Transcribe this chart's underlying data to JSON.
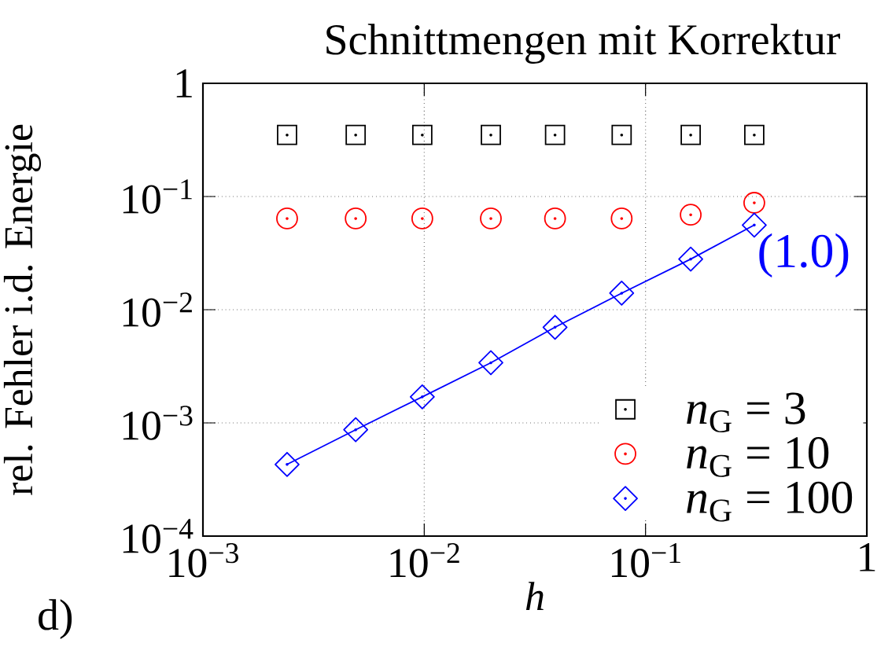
{
  "chart_data": {
    "type": "scatter",
    "title": "Schnittmengen mit Korrektur",
    "xlabel": "h",
    "ylabel": "rel. Fehler i.d. Energie",
    "annotations": [
      "(1.0)",
      "d)"
    ],
    "x": [
      0.0024,
      0.0049,
      0.0098,
      0.02,
      0.039,
      0.078,
      0.16,
      0.31
    ],
    "series": [
      {
        "name": "*n*$_{G}$ = 3",
        "color": "#000000",
        "marker": "square",
        "values": [
          0.35,
          0.35,
          0.35,
          0.35,
          0.35,
          0.35,
          0.35,
          0.35
        ]
      },
      {
        "name": "*n*$_{G}$ = 10",
        "color": "#ff0000",
        "marker": "circle",
        "values": [
          0.064,
          0.064,
          0.064,
          0.064,
          0.064,
          0.064,
          0.069,
          0.088
        ]
      },
      {
        "name": "*n*$_{G}$ = 100",
        "type": "line",
        "color": "#0000ff",
        "marker": "diamond",
        "line_style": "solid",
        "values": [
          0.00043,
          0.00087,
          0.0017,
          0.0034,
          0.007,
          0.014,
          0.028,
          0.056
        ]
      }
    ],
    "xlim": [
      0.001,
      1
    ],
    "ylim": [
      0.0001,
      1
    ],
    "xticks": [
      {
        "value": 0.001,
        "label": "10$^{−3}$"
      },
      {
        "value": 0.01,
        "label": "10$^{−2}$"
      },
      {
        "value": 0.1,
        "label": "10$^{−1}$"
      },
      1
    ],
    "yticks": [
      {
        "value": 0.0001,
        "label": "10$^{−4}$"
      },
      {
        "value": 0.001,
        "label": "10$^{−3}$"
      },
      {
        "value": 0.01,
        "label": "10$^{−2}$"
      },
      {
        "value": 0.1,
        "label": "10$^{−1}$"
      },
      1
    ],
    "log": "xy",
    "grid": true,
    "legend": "bottom right"
  }
}
